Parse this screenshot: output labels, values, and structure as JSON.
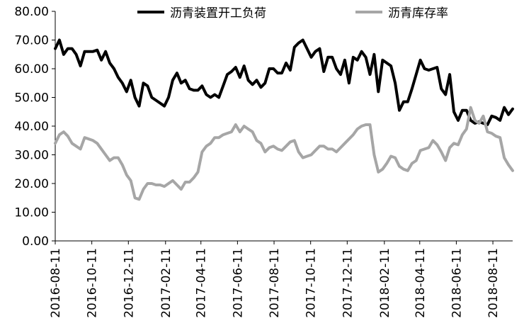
{
  "chart_data": {
    "type": "line",
    "ylim": [
      0,
      80
    ],
    "yticks": [
      "0.00",
      "10.00",
      "20.00",
      "30.00",
      "40.00",
      "50.00",
      "60.00",
      "70.00",
      "80.00"
    ],
    "xticks": [
      "2016-08-11",
      "2016-10-11",
      "2016-12-11",
      "2017-02-11",
      "2017-04-11",
      "2017-06-11",
      "2017-08-11",
      "2017-10-11",
      "2017-12-11",
      "2018-02-11",
      "2018-04-11",
      "2018-06-11",
      "2018-08-11"
    ],
    "legend_position": "top",
    "series": [
      {
        "name": "沥青装置开工负荷",
        "color": "#000000",
        "points": [
          [
            "2016-08-11",
            67.0
          ],
          [
            "2016-08-18",
            70.0
          ],
          [
            "2016-08-25",
            65.0
          ],
          [
            "2016-09-01",
            67.0
          ],
          [
            "2016-09-08",
            67.0
          ],
          [
            "2016-09-15",
            65.0
          ],
          [
            "2016-09-22",
            61.0
          ],
          [
            "2016-09-29",
            66.0
          ],
          [
            "2016-10-06",
            66.0
          ],
          [
            "2016-10-13",
            66.0
          ],
          [
            "2016-10-20",
            66.5
          ],
          [
            "2016-10-27",
            63.0
          ],
          [
            "2016-11-03",
            66.0
          ],
          [
            "2016-11-10",
            62.0
          ],
          [
            "2016-11-17",
            60.0
          ],
          [
            "2016-11-24",
            57.0
          ],
          [
            "2016-12-01",
            55.0
          ],
          [
            "2016-12-08",
            52.0
          ],
          [
            "2016-12-15",
            56.0
          ],
          [
            "2016-12-22",
            50.0
          ],
          [
            "2016-12-29",
            47.0
          ],
          [
            "2017-01-05",
            55.0
          ],
          [
            "2017-01-12",
            54.0
          ],
          [
            "2017-01-19",
            50.0
          ],
          [
            "2017-01-26",
            49.0
          ],
          [
            "2017-02-02",
            48.0
          ],
          [
            "2017-02-09",
            47.0
          ],
          [
            "2017-02-16",
            50.0
          ],
          [
            "2017-02-23",
            56.0
          ],
          [
            "2017-03-02",
            58.5
          ],
          [
            "2017-03-09",
            55.0
          ],
          [
            "2017-03-16",
            56.0
          ],
          [
            "2017-03-23",
            53.0
          ],
          [
            "2017-03-30",
            52.5
          ],
          [
            "2017-04-06",
            52.5
          ],
          [
            "2017-04-13",
            54.0
          ],
          [
            "2017-04-20",
            51.0
          ],
          [
            "2017-04-27",
            50.0
          ],
          [
            "2017-05-04",
            51.0
          ],
          [
            "2017-05-11",
            50.0
          ],
          [
            "2017-05-18",
            54.0
          ],
          [
            "2017-05-25",
            58.0
          ],
          [
            "2017-06-01",
            59.0
          ],
          [
            "2017-06-08",
            60.5
          ],
          [
            "2017-06-15",
            57.0
          ],
          [
            "2017-06-22",
            61.0
          ],
          [
            "2017-06-29",
            56.0
          ],
          [
            "2017-07-06",
            54.5
          ],
          [
            "2017-07-13",
            56.0
          ],
          [
            "2017-07-20",
            53.5
          ],
          [
            "2017-07-27",
            55.0
          ],
          [
            "2017-08-03",
            60.0
          ],
          [
            "2017-08-10",
            60.0
          ],
          [
            "2017-08-17",
            58.5
          ],
          [
            "2017-08-24",
            58.5
          ],
          [
            "2017-08-31",
            62.0
          ],
          [
            "2017-09-07",
            59.5
          ],
          [
            "2017-09-14",
            67.5
          ],
          [
            "2017-09-21",
            69.0
          ],
          [
            "2017-09-28",
            70.0
          ],
          [
            "2017-10-05",
            67.0
          ],
          [
            "2017-10-12",
            64.0
          ],
          [
            "2017-10-19",
            66.0
          ],
          [
            "2017-10-26",
            67.0
          ],
          [
            "2017-11-02",
            59.0
          ],
          [
            "2017-11-09",
            64.0
          ],
          [
            "2017-11-16",
            64.0
          ],
          [
            "2017-11-23",
            60.0
          ],
          [
            "2017-11-30",
            58.0
          ],
          [
            "2017-12-07",
            63.0
          ],
          [
            "2017-12-14",
            55.0
          ],
          [
            "2017-12-21",
            64.0
          ],
          [
            "2017-12-28",
            63.0
          ],
          [
            "2018-01-04",
            66.0
          ],
          [
            "2018-01-11",
            64.0
          ],
          [
            "2018-01-18",
            58.0
          ],
          [
            "2018-01-25",
            65.0
          ],
          [
            "2018-02-01",
            52.0
          ],
          [
            "2018-02-08",
            63.0
          ],
          [
            "2018-02-15",
            62.0
          ],
          [
            "2018-02-22",
            61.0
          ],
          [
            "2018-03-01",
            55.0
          ],
          [
            "2018-03-08",
            45.5
          ],
          [
            "2018-03-15",
            48.5
          ],
          [
            "2018-03-22",
            48.5
          ],
          [
            "2018-03-29",
            53.0
          ],
          [
            "2018-04-05",
            58.0
          ],
          [
            "2018-04-12",
            63.0
          ],
          [
            "2018-04-19",
            60.0
          ],
          [
            "2018-04-26",
            59.5
          ],
          [
            "2018-05-03",
            60.0
          ],
          [
            "2018-05-10",
            60.5
          ],
          [
            "2018-05-17",
            53.0
          ],
          [
            "2018-05-24",
            51.0
          ],
          [
            "2018-05-31",
            58.0
          ],
          [
            "2018-06-07",
            45.0
          ],
          [
            "2018-06-14",
            42.0
          ],
          [
            "2018-06-21",
            45.5
          ],
          [
            "2018-06-28",
            45.5
          ],
          [
            "2018-07-05",
            42.0
          ],
          [
            "2018-07-12",
            41.0
          ],
          [
            "2018-07-19",
            41.5
          ],
          [
            "2018-07-26",
            41.0
          ],
          [
            "2018-08-02",
            40.5
          ],
          [
            "2018-08-09",
            43.5
          ],
          [
            "2018-08-16",
            43.0
          ],
          [
            "2018-08-23",
            42.0
          ],
          [
            "2018-08-30",
            46.5
          ],
          [
            "2018-09-06",
            44.0
          ],
          [
            "2018-09-13",
            46.0
          ]
        ]
      },
      {
        "name": "沥青库存率",
        "color": "#a6a6a6",
        "points": [
          [
            "2016-08-11",
            34.0
          ],
          [
            "2016-08-18",
            37.0
          ],
          [
            "2016-08-25",
            38.0
          ],
          [
            "2016-09-01",
            36.5
          ],
          [
            "2016-09-08",
            34.0
          ],
          [
            "2016-09-15",
            33.0
          ],
          [
            "2016-09-22",
            32.0
          ],
          [
            "2016-09-29",
            36.0
          ],
          [
            "2016-10-06",
            35.5
          ],
          [
            "2016-10-13",
            35.0
          ],
          [
            "2016-10-20",
            34.0
          ],
          [
            "2016-10-27",
            32.0
          ],
          [
            "2016-11-03",
            30.0
          ],
          [
            "2016-11-10",
            28.0
          ],
          [
            "2016-11-17",
            29.0
          ],
          [
            "2016-11-24",
            29.0
          ],
          [
            "2016-12-01",
            26.5
          ],
          [
            "2016-12-08",
            23.0
          ],
          [
            "2016-12-15",
            21.0
          ],
          [
            "2016-12-22",
            15.0
          ],
          [
            "2016-12-29",
            14.5
          ],
          [
            "2017-01-05",
            18.0
          ],
          [
            "2017-01-12",
            20.0
          ],
          [
            "2017-01-19",
            20.0
          ],
          [
            "2017-01-26",
            19.5
          ],
          [
            "2017-02-02",
            19.5
          ],
          [
            "2017-02-09",
            19.0
          ],
          [
            "2017-02-16",
            20.0
          ],
          [
            "2017-02-23",
            21.0
          ],
          [
            "2017-03-02",
            19.5
          ],
          [
            "2017-03-09",
            18.0
          ],
          [
            "2017-03-16",
            20.5
          ],
          [
            "2017-03-23",
            20.5
          ],
          [
            "2017-03-30",
            22.0
          ],
          [
            "2017-04-06",
            24.0
          ],
          [
            "2017-04-13",
            31.0
          ],
          [
            "2017-04-20",
            33.0
          ],
          [
            "2017-04-27",
            34.0
          ],
          [
            "2017-05-04",
            36.0
          ],
          [
            "2017-05-11",
            36.0
          ],
          [
            "2017-05-18",
            37.0
          ],
          [
            "2017-05-25",
            37.5
          ],
          [
            "2017-06-01",
            38.0
          ],
          [
            "2017-06-08",
            40.5
          ],
          [
            "2017-06-15",
            38.0
          ],
          [
            "2017-06-22",
            40.0
          ],
          [
            "2017-06-29",
            39.0
          ],
          [
            "2017-07-06",
            38.0
          ],
          [
            "2017-07-13",
            35.0
          ],
          [
            "2017-07-20",
            34.0
          ],
          [
            "2017-07-27",
            31.0
          ],
          [
            "2017-08-03",
            32.5
          ],
          [
            "2017-08-10",
            33.0
          ],
          [
            "2017-08-17",
            32.0
          ],
          [
            "2017-08-24",
            31.5
          ],
          [
            "2017-08-31",
            33.0
          ],
          [
            "2017-09-07",
            34.5
          ],
          [
            "2017-09-14",
            35.0
          ],
          [
            "2017-09-21",
            31.0
          ],
          [
            "2017-09-28",
            29.0
          ],
          [
            "2017-10-05",
            29.5
          ],
          [
            "2017-10-12",
            30.0
          ],
          [
            "2017-10-19",
            31.5
          ],
          [
            "2017-10-26",
            33.0
          ],
          [
            "2017-11-02",
            33.0
          ],
          [
            "2017-11-09",
            32.0
          ],
          [
            "2017-11-16",
            32.0
          ],
          [
            "2017-11-23",
            31.0
          ],
          [
            "2017-11-30",
            32.5
          ],
          [
            "2017-12-07",
            34.0
          ],
          [
            "2017-12-14",
            35.5
          ],
          [
            "2017-12-21",
            37.0
          ],
          [
            "2017-12-28",
            39.0
          ],
          [
            "2018-01-04",
            40.0
          ],
          [
            "2018-01-11",
            40.5
          ],
          [
            "2018-01-18",
            40.5
          ],
          [
            "2018-01-25",
            30.0
          ],
          [
            "2018-02-01",
            24.0
          ],
          [
            "2018-02-08",
            25.0
          ],
          [
            "2018-02-15",
            27.0
          ],
          [
            "2018-02-22",
            29.5
          ],
          [
            "2018-03-01",
            29.0
          ],
          [
            "2018-03-08",
            26.0
          ],
          [
            "2018-03-15",
            25.0
          ],
          [
            "2018-03-22",
            24.5
          ],
          [
            "2018-03-29",
            27.0
          ],
          [
            "2018-04-05",
            28.0
          ],
          [
            "2018-04-12",
            31.5
          ],
          [
            "2018-04-19",
            32.0
          ],
          [
            "2018-04-26",
            32.5
          ],
          [
            "2018-05-03",
            35.0
          ],
          [
            "2018-05-10",
            33.5
          ],
          [
            "2018-05-17",
            31.0
          ],
          [
            "2018-05-24",
            28.0
          ],
          [
            "2018-05-31",
            32.5
          ],
          [
            "2018-06-07",
            34.0
          ],
          [
            "2018-06-14",
            33.5
          ],
          [
            "2018-06-21",
            37.0
          ],
          [
            "2018-06-28",
            39.0
          ],
          [
            "2018-07-05",
            46.5
          ],
          [
            "2018-07-12",
            42.0
          ],
          [
            "2018-07-19",
            41.0
          ],
          [
            "2018-07-26",
            43.5
          ],
          [
            "2018-08-02",
            38.0
          ],
          [
            "2018-08-09",
            37.5
          ],
          [
            "2018-08-16",
            36.5
          ],
          [
            "2018-08-23",
            36.0
          ],
          [
            "2018-08-30",
            29.0
          ],
          [
            "2018-09-06",
            26.5
          ],
          [
            "2018-09-13",
            24.5
          ]
        ]
      }
    ]
  }
}
